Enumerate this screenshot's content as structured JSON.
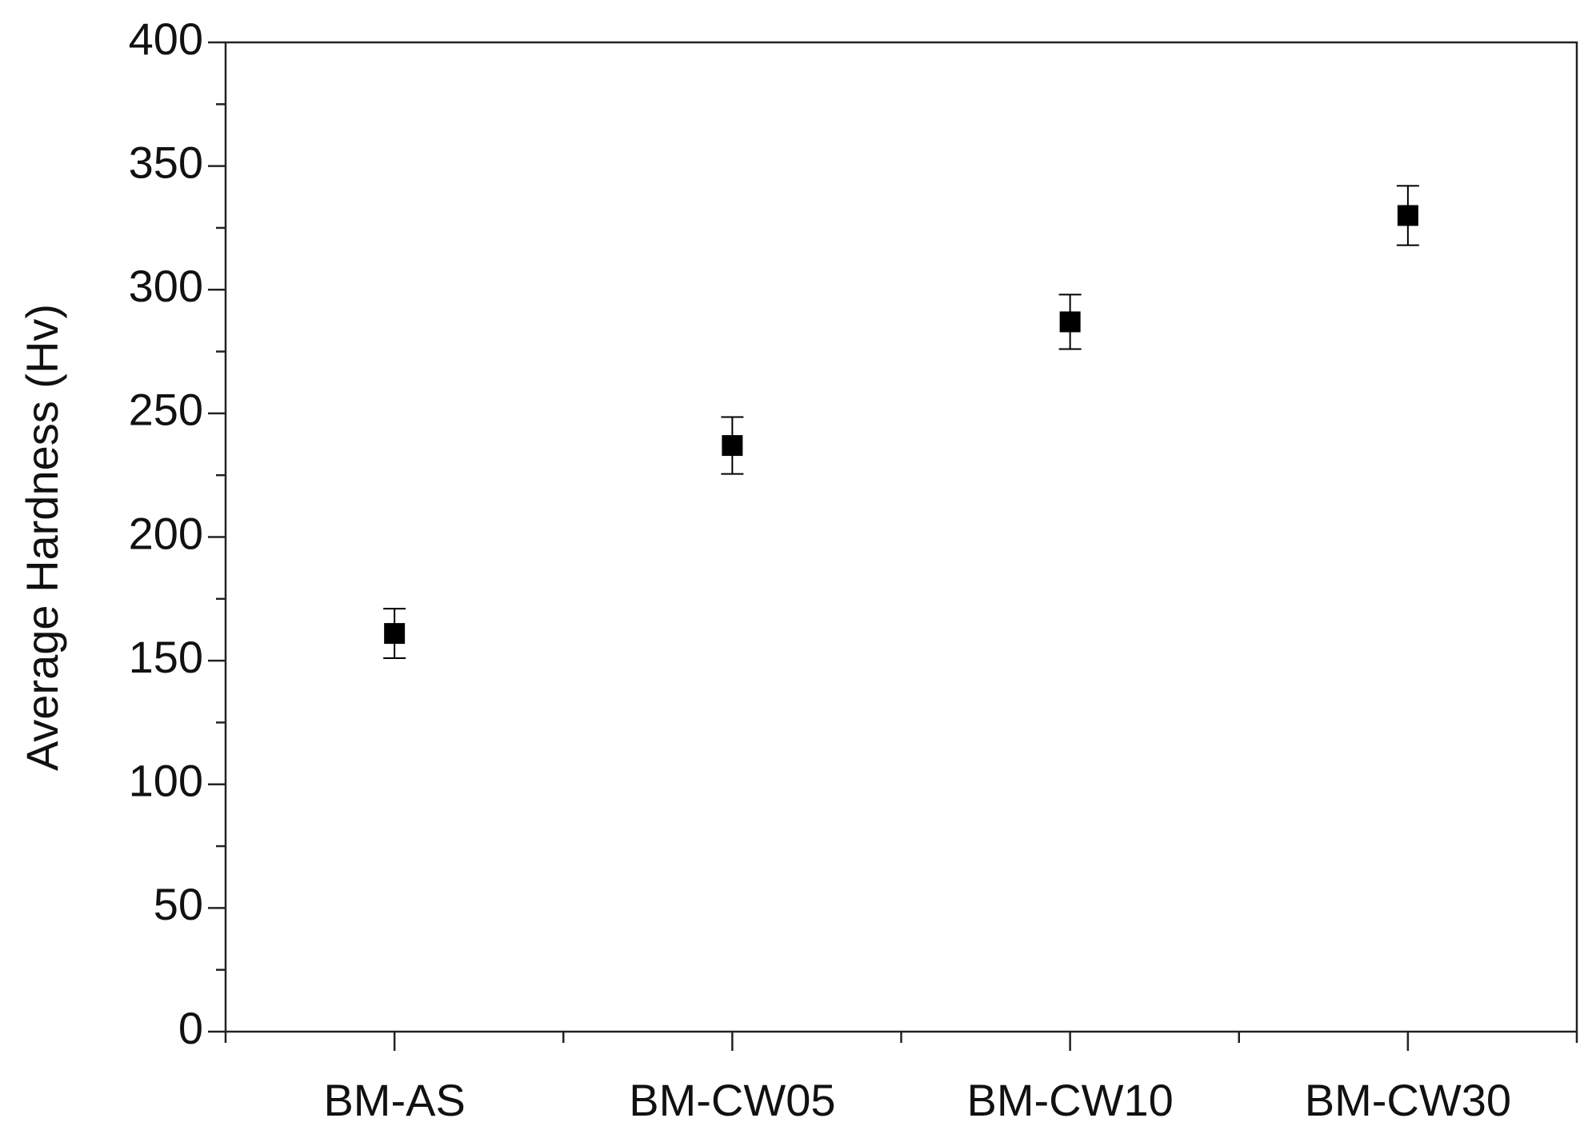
{
  "chart_data": {
    "type": "scatter",
    "y_label": "Average Hardness (Hv)",
    "categories": [
      "BM-AS",
      "BM-CW05",
      "BM-CW10",
      "BM-CW30"
    ],
    "values": [
      161,
      237,
      287,
      330
    ],
    "errors": [
      10,
      11.5,
      11,
      12
    ],
    "color": "#000000",
    "ylim": [
      0,
      400
    ],
    "yticks": [
      0,
      50,
      100,
      150,
      200,
      250,
      300,
      350,
      400
    ],
    "yminorticks": [
      25,
      75,
      125,
      175,
      225,
      275,
      325,
      375
    ],
    "grid": false
  }
}
